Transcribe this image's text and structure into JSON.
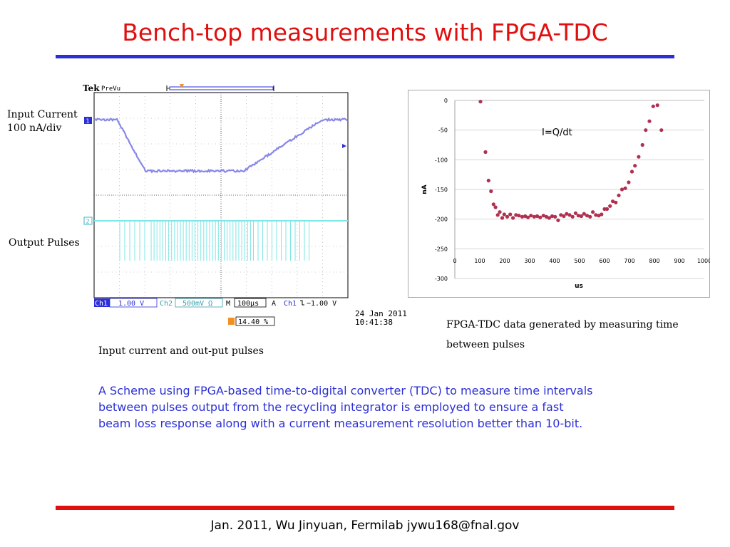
{
  "slide": {
    "title": "Bench-top measurements with FPGA-TDC",
    "footer": "Jan. 2011, Wu Jinyuan, Fermilab jywu168@fnal.gov",
    "body_text": "A Scheme using FPGA-based time-to-digital converter (TDC) to measure time intervals between pulses output from the recycling integrator is employed to ensure a fast beam loss response along with a current measurement resolution better than 10-bit.",
    "colors": {
      "title": "#e01010",
      "title_rule": "#2b2fd6",
      "footer_rule": "#e01010",
      "body_text": "#2b2fd6"
    }
  },
  "scope": {
    "brand": "Tek",
    "mode": "PreVu",
    "input_label_1": "Input Current",
    "input_label_2": "100 nA/div",
    "output_label": "Output Pulses",
    "ch1_marker": "1",
    "ch2_marker": "2",
    "trigger_marker": "T",
    "status": {
      "ch1": "Ch1",
      "ch1_scale": "1.00 V",
      "ch2": "Ch2",
      "ch2_scale": "500mV Ω",
      "m": "M",
      "timebase": "100µs",
      "a": "A",
      "trig_ch": "Ch1",
      "trig_level": "−1.00 V",
      "trig_pos": "14.40 %"
    },
    "date_line1": "24 Jan  2011",
    "date_line2": "10:41:38",
    "caption": "Input current and out-put pulses",
    "colors": {
      "ch1": "#7a7ae6",
      "ch2": "#7fe6e6"
    }
  },
  "chart_data": {
    "type": "scatter",
    "title": "",
    "annotation": "I=Q/dt",
    "xlabel": "us",
    "ylabel": "nA",
    "xlim": [
      0,
      1000
    ],
    "ylim": [
      -300,
      0
    ],
    "x_ticks": [
      "0",
      "100",
      "200",
      "300",
      "400",
      "500",
      "600",
      "700",
      "800",
      "900",
      "1000"
    ],
    "y_ticks": [
      "0",
      "-50",
      "-100",
      "-150",
      "-200",
      "-250",
      "-300"
    ],
    "grid": "horizontal",
    "marker_color": "#b03050",
    "series": [
      {
        "x": [
          103,
          123,
          135,
          145,
          155,
          163,
          172,
          180,
          190,
          198,
          210,
          222,
          233,
          245,
          257,
          270,
          282,
          293,
          305,
          318,
          330,
          342,
          355,
          367,
          378,
          390,
          402,
          414,
          425,
          437,
          448,
          460,
          472,
          484,
          495,
          507,
          518,
          530,
          542,
          553,
          565,
          577,
          588,
          600,
          610,
          622,
          633,
          645,
          657,
          670,
          683,
          697,
          710,
          722,
          737,
          752,
          765,
          780,
          795,
          812,
          828
        ],
        "y": [
          -2,
          -87,
          -135,
          -153,
          -175,
          -180,
          -193,
          -188,
          -198,
          -192,
          -196,
          -192,
          -198,
          -193,
          -194,
          -196,
          -195,
          -197,
          -194,
          -196,
          -195,
          -197,
          -194,
          -196,
          -198,
          -195,
          -196,
          -202,
          -193,
          -195,
          -191,
          -193,
          -196,
          -190,
          -194,
          -195,
          -191,
          -194,
          -196,
          -188,
          -193,
          -194,
          -192,
          -183,
          -183,
          -178,
          -170,
          -172,
          -160,
          -150,
          -148,
          -138,
          -120,
          -110,
          -95,
          -75,
          -50,
          -35,
          -10,
          -8,
          -50
        ]
      }
    ]
  }
}
